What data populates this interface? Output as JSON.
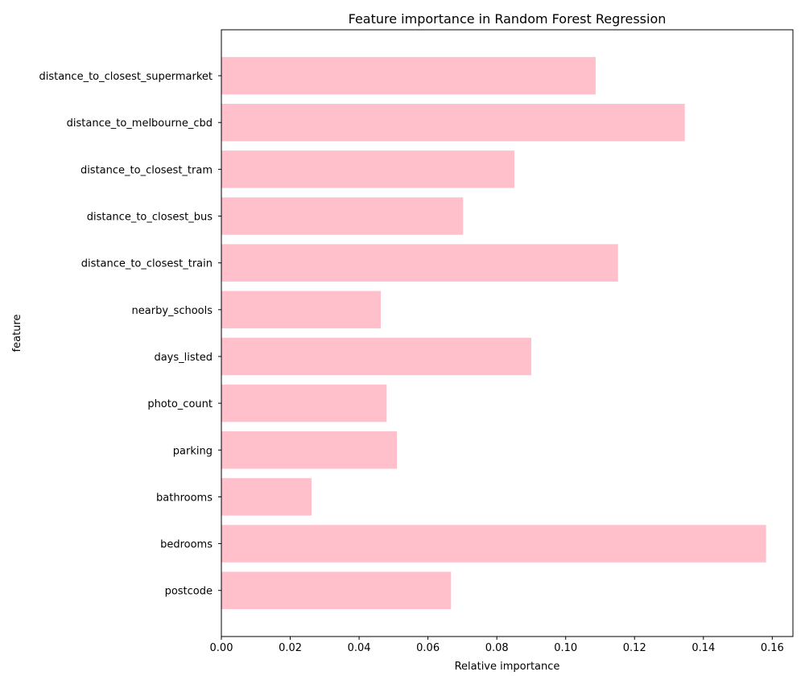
{
  "chart_data": {
    "type": "bar",
    "orientation": "horizontal",
    "title": "Feature importance in Random Forest Regression",
    "xlabel": "Relative importance",
    "ylabel": "feature",
    "categories": [
      "postcode",
      "bedrooms",
      "bathrooms",
      "parking",
      "photo_count",
      "days_listed",
      "nearby_schools",
      "distance_to_closest_train",
      "distance_to_closest_bus",
      "distance_to_closest_tram",
      "distance_to_melbourne_cbd",
      "distance_to_closest_supermarket"
    ],
    "values": [
      0.0667,
      0.1582,
      0.0262,
      0.051,
      0.048,
      0.09,
      0.0463,
      0.1152,
      0.0702,
      0.0851,
      0.1346,
      0.1087
    ],
    "xlim": [
      0,
      0.166
    ],
    "xticks": [
      "0.00",
      "0.02",
      "0.04",
      "0.06",
      "0.08",
      "0.10",
      "0.12",
      "0.14",
      "0.16"
    ],
    "bar_color": "#ffc0cb",
    "grid": false,
    "legend": "none"
  }
}
